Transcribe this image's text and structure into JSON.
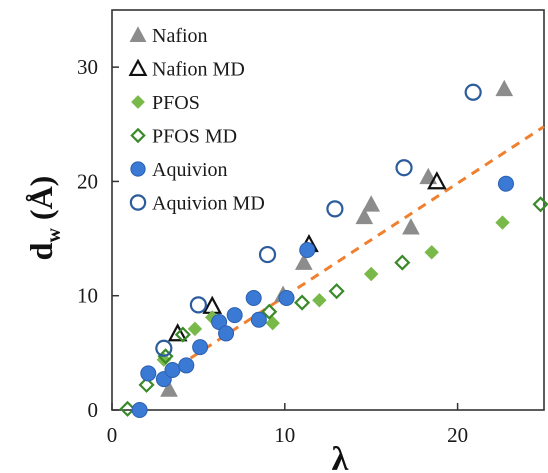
{
  "chart_data": {
    "type": "scatter",
    "xlabel": "λ",
    "ylabel_main": "d",
    "ylabel_sub": "w",
    "ylabel_unit": "(Å)",
    "xlim": [
      0,
      25
    ],
    "ylim": [
      0,
      35
    ],
    "xticks": [
      0,
      10,
      20
    ],
    "yticks": [
      0,
      10,
      20,
      30
    ],
    "grid": false,
    "legend_position": "top-left",
    "fit_line": {
      "x": [
        3,
        25
      ],
      "y": [
        3.0,
        24.8
      ],
      "color": "#f08030",
      "style": "dashed"
    },
    "series": [
      {
        "name": "Nafion",
        "marker": "triangle",
        "filled": true,
        "color": "#8c8c8c",
        "points": [
          [
            3.3,
            1.8
          ],
          [
            9.9,
            10.1
          ],
          [
            11.1,
            12.9
          ],
          [
            14.6,
            16.9
          ],
          [
            15.0,
            18.0
          ],
          [
            17.3,
            16.0
          ],
          [
            18.3,
            20.4
          ],
          [
            22.7,
            28.1
          ]
        ]
      },
      {
        "name": "Nafion MD",
        "marker": "triangle",
        "filled": false,
        "color": "#111111",
        "points": [
          [
            3.8,
            6.7
          ],
          [
            5.8,
            9.1
          ],
          [
            11.4,
            14.5
          ],
          [
            18.8,
            20.0
          ]
        ]
      },
      {
        "name": "PFOS",
        "marker": "diamond",
        "filled": true,
        "color": "#79b94a",
        "points": [
          [
            3.0,
            4.4
          ],
          [
            4.8,
            7.1
          ],
          [
            5.8,
            8.1
          ],
          [
            9.3,
            7.6
          ],
          [
            12.0,
            9.6
          ],
          [
            15.0,
            11.9
          ],
          [
            18.5,
            13.8
          ],
          [
            22.6,
            16.4
          ]
        ]
      },
      {
        "name": "PFOS MD",
        "marker": "diamond",
        "filled": false,
        "color": "#3a8a2a",
        "points": [
          [
            0.9,
            0.1
          ],
          [
            2.0,
            2.2
          ],
          [
            3.1,
            4.7
          ],
          [
            4.1,
            6.6
          ],
          [
            9.1,
            8.6
          ],
          [
            11.0,
            9.4
          ],
          [
            13.0,
            10.4
          ],
          [
            16.8,
            12.9
          ],
          [
            24.8,
            18.0
          ]
        ]
      },
      {
        "name": "Aquivion",
        "marker": "circle",
        "filled": true,
        "color": "#3b7ad4",
        "points": [
          [
            1.6,
            0.0
          ],
          [
            2.1,
            3.2
          ],
          [
            3.0,
            2.7
          ],
          [
            3.5,
            3.5
          ],
          [
            4.3,
            3.9
          ],
          [
            5.1,
            5.5
          ],
          [
            6.2,
            7.7
          ],
          [
            6.6,
            6.7
          ],
          [
            7.1,
            8.3
          ],
          [
            8.2,
            9.8
          ],
          [
            8.5,
            7.9
          ],
          [
            10.1,
            9.8
          ],
          [
            11.3,
            14.0
          ],
          [
            22.8,
            19.8
          ]
        ]
      },
      {
        "name": "Aquivion MD",
        "marker": "circle",
        "filled": false,
        "color": "#2c5c9c",
        "points": [
          [
            3.0,
            5.4
          ],
          [
            5.0,
            9.2
          ],
          [
            9.0,
            13.6
          ],
          [
            12.9,
            17.6
          ],
          [
            16.9,
            21.2
          ],
          [
            20.9,
            27.8
          ]
        ]
      }
    ]
  }
}
